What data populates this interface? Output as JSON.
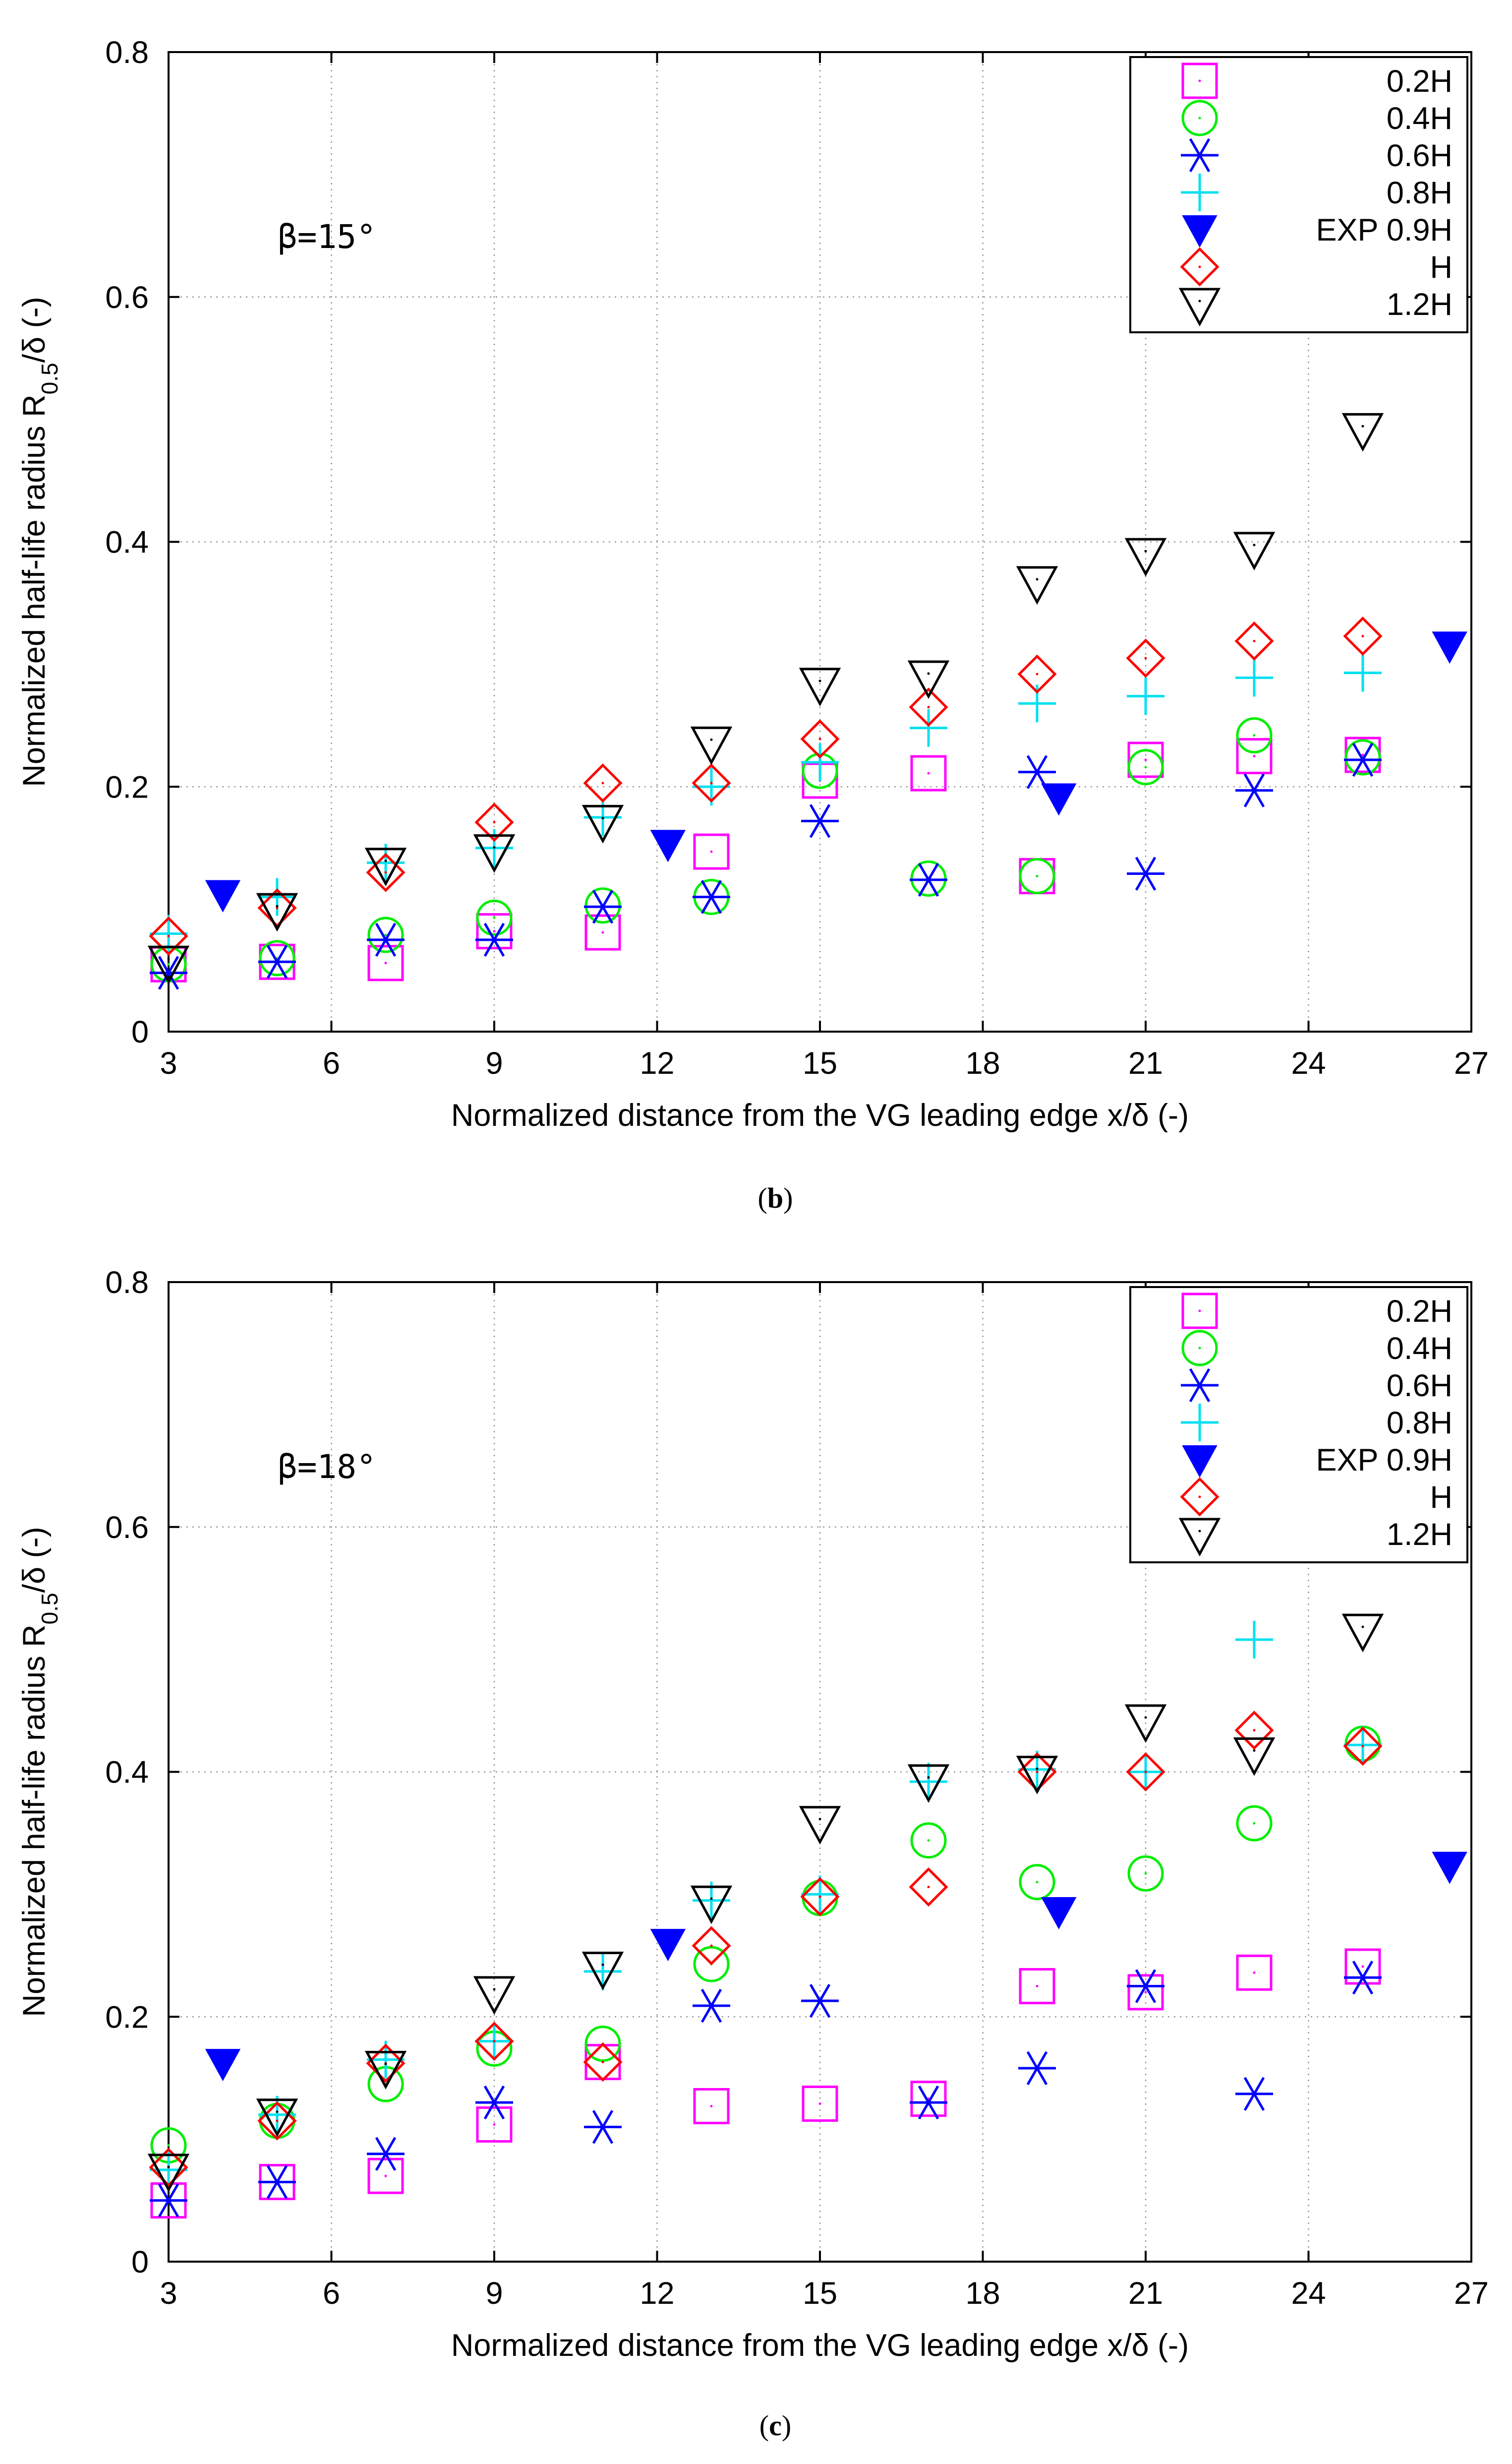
{
  "chart_data": [
    {
      "type": "scatter",
      "caption": "b",
      "annotation": "β=15°",
      "xlabel": "Normalized distance from the VG leading edge x/δ (-)",
      "ylabel": "Normalized half-life radius R0.5/δ (-)",
      "ylabel_parts": {
        "main": "Normalized half-life radius  R",
        "sub": "0.5",
        "tail": "/δ (-)"
      },
      "xlim": [
        3,
        27
      ],
      "ylim": [
        0,
        0.8
      ],
      "xticks": [
        "3",
        "6",
        "9",
        "12",
        "15",
        "18",
        "21",
        "24",
        "27"
      ],
      "yticks": [
        "0",
        "0.2",
        "0.4",
        "0.6",
        "0.8"
      ],
      "grid": true,
      "legend_position": "top-right",
      "series": [
        {
          "name": "0.2H",
          "marker": "square",
          "color": "#ff00ff",
          "x": [
            3,
            5,
            7,
            9,
            11,
            13,
            15,
            17,
            19,
            21,
            23,
            25
          ],
          "y": [
            0.055,
            0.057,
            0.056,
            0.082,
            0.081,
            0.147,
            0.205,
            0.211,
            0.127,
            0.222,
            0.225,
            0.226
          ]
        },
        {
          "name": "0.4H",
          "marker": "circle",
          "color": "#00ee00",
          "x": [
            3,
            5,
            7,
            9,
            11,
            13,
            15,
            17,
            19,
            21,
            23,
            25
          ],
          "y": [
            0.055,
            0.06,
            0.079,
            0.093,
            0.103,
            0.11,
            0.213,
            0.125,
            0.127,
            0.216,
            0.242,
            0.224
          ]
        },
        {
          "name": "0.6H",
          "marker": "asterisk",
          "color": "#0000ff",
          "x": [
            3,
            5,
            7,
            9,
            11,
            13,
            15,
            17,
            19,
            21,
            23,
            25
          ],
          "y": [
            0.048,
            0.057,
            0.075,
            0.075,
            0.102,
            0.11,
            0.172,
            0.124,
            0.212,
            0.129,
            0.197,
            0.222
          ]
        },
        {
          "name": "0.8H",
          "marker": "plus",
          "color": "#00e0f0",
          "x": [
            3,
            5,
            7,
            9,
            11,
            13,
            15,
            17,
            19,
            21,
            23,
            25
          ],
          "y": [
            0.08,
            0.11,
            0.138,
            0.15,
            0.175,
            0.2,
            0.22,
            0.248,
            0.268,
            0.274,
            0.289,
            0.293
          ]
        },
        {
          "name": "EXP 0.9H",
          "marker": "filled-triangle-down",
          "color": "#0000ff",
          "x": [
            4.0,
            12.2,
            19.4,
            26.6
          ],
          "y": [
            0.112,
            0.153,
            0.191,
            0.315
          ]
        },
        {
          "name": "H",
          "marker": "diamond",
          "color": "#ff0000",
          "x": [
            3,
            5,
            7,
            9,
            11,
            13,
            15,
            17,
            19,
            21,
            23,
            25
          ],
          "y": [
            0.078,
            0.101,
            0.13,
            0.171,
            0.203,
            0.203,
            0.239,
            0.265,
            0.292,
            0.305,
            0.319,
            0.323
          ]
        },
        {
          "name": "1.2H",
          "marker": "triangle-down",
          "color": "#000000",
          "x": [
            3,
            5,
            7,
            9,
            11,
            13,
            15,
            17,
            19,
            21,
            23,
            25
          ],
          "y": [
            0.057,
            0.1,
            0.137,
            0.148,
            0.172,
            0.236,
            0.284,
            0.29,
            0.367,
            0.39,
            0.395,
            0.492
          ]
        }
      ]
    },
    {
      "type": "scatter",
      "caption": "c",
      "annotation": "β=18°",
      "xlabel": "Normalized distance from the VG leading edge x/δ (-)",
      "ylabel": "Normalized half-life radius R0.5/δ (-)",
      "ylabel_parts": {
        "main": "Normalized half-life radius  R",
        "sub": "0.5",
        "tail": "/δ (-)"
      },
      "xlim": [
        3,
        27
      ],
      "ylim": [
        0,
        0.8
      ],
      "xticks": [
        "3",
        "6",
        "9",
        "12",
        "15",
        "18",
        "21",
        "24",
        "27"
      ],
      "yticks": [
        "0",
        "0.2",
        "0.4",
        "0.6",
        "0.8"
      ],
      "grid": true,
      "legend_position": "top-right",
      "series": [
        {
          "name": "0.2H",
          "marker": "square",
          "color": "#ff00ff",
          "x": [
            3,
            5,
            7,
            9,
            11,
            13,
            15,
            17,
            19,
            21,
            23,
            25
          ],
          "y": [
            0.05,
            0.065,
            0.07,
            0.112,
            0.163,
            0.127,
            0.129,
            0.133,
            0.225,
            0.22,
            0.236,
            0.241
          ]
        },
        {
          "name": "0.4H",
          "marker": "circle",
          "color": "#00ee00",
          "x": [
            3,
            5,
            7,
            9,
            11,
            13,
            15,
            17,
            19,
            21,
            23,
            25
          ],
          "y": [
            0.095,
            0.115,
            0.145,
            0.174,
            0.178,
            0.243,
            0.297,
            0.344,
            0.31,
            0.317,
            0.358,
            0.423
          ]
        },
        {
          "name": "0.6H",
          "marker": "asterisk",
          "color": "#0000ff",
          "x": [
            3,
            5,
            7,
            9,
            11,
            13,
            15,
            17,
            19,
            21,
            23,
            25
          ],
          "y": [
            0.05,
            0.065,
            0.088,
            0.13,
            0.11,
            0.209,
            0.213,
            0.13,
            0.158,
            0.225,
            0.137,
            0.232
          ]
        },
        {
          "name": "0.8H",
          "marker": "plus",
          "color": "#00e0f0",
          "x": [
            3,
            5,
            7,
            9,
            11,
            13,
            15,
            17,
            19,
            21,
            23,
            25
          ],
          "y": [
            0.075,
            0.12,
            0.165,
            0.18,
            0.237,
            0.295,
            0.3,
            0.392,
            0.402,
            0.4,
            0.508,
            0.422
          ]
        },
        {
          "name": "EXP 0.9H",
          "marker": "filled-triangle-down",
          "color": "#0000ff",
          "x": [
            4.0,
            12.2,
            19.4,
            26.6
          ],
          "y": [
            0.162,
            0.26,
            0.286,
            0.323
          ]
        },
        {
          "name": "H",
          "marker": "diamond",
          "color": "#ff0000",
          "x": [
            3,
            5,
            7,
            9,
            11,
            13,
            15,
            17,
            19,
            21,
            23,
            25
          ],
          "y": [
            0.077,
            0.115,
            0.162,
            0.18,
            0.163,
            0.258,
            0.298,
            0.306,
            0.4,
            0.4,
            0.434,
            0.421
          ]
        },
        {
          "name": "1.2H",
          "marker": "triangle-down",
          "color": "#000000",
          "x": [
            3,
            5,
            7,
            9,
            11,
            13,
            15,
            17,
            19,
            21,
            23,
            25
          ],
          "y": [
            0.075,
            0.12,
            0.159,
            0.22,
            0.24,
            0.294,
            0.359,
            0.393,
            0.4,
            0.442,
            0.415,
            0.516
          ]
        }
      ]
    }
  ]
}
